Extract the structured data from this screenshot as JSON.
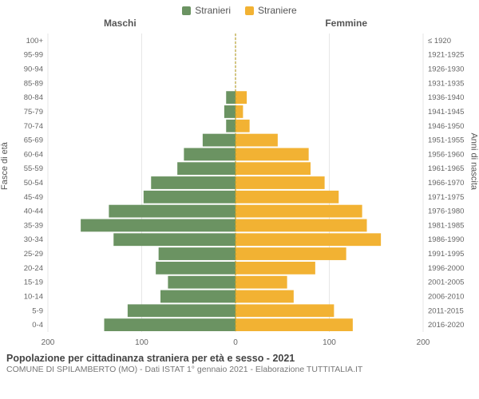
{
  "legend": {
    "male": "Stranieri",
    "female": "Straniere"
  },
  "columns": {
    "male": "Maschi",
    "female": "Femmine"
  },
  "axis_labels": {
    "left": "Fasce di età",
    "right": "Anni di nascita"
  },
  "title": "Popolazione per cittadinanza straniera per età e sesso - 2021",
  "subtitle": "COMUNE DI SPILAMBERTO (MO) - Dati ISTAT 1° gennaio 2021 - Elaborazione TUTTITALIA.IT",
  "colors": {
    "male": "#6b9362",
    "female": "#f2b233",
    "grid": "#e6e6e6",
    "center": "#b8a030",
    "bg": "#ffffff",
    "text": "#666666"
  },
  "chart": {
    "type": "population-pyramid",
    "xlim": 200,
    "xticks": [
      200,
      100,
      0,
      100,
      200
    ],
    "xtick_labels": [
      "200",
      "100",
      "0",
      "100",
      "200"
    ],
    "bar_gap": 2,
    "rows": [
      {
        "age": "100+",
        "birth": "≤ 1920",
        "m": 0,
        "f": 0
      },
      {
        "age": "95-99",
        "birth": "1921-1925",
        "m": 0,
        "f": 0
      },
      {
        "age": "90-94",
        "birth": "1926-1930",
        "m": 0,
        "f": 0
      },
      {
        "age": "85-89",
        "birth": "1931-1935",
        "m": 0,
        "f": 0
      },
      {
        "age": "80-84",
        "birth": "1936-1940",
        "m": 10,
        "f": 12
      },
      {
        "age": "75-79",
        "birth": "1941-1945",
        "m": 12,
        "f": 8
      },
      {
        "age": "70-74",
        "birth": "1946-1950",
        "m": 10,
        "f": 15
      },
      {
        "age": "65-69",
        "birth": "1951-1955",
        "m": 35,
        "f": 45
      },
      {
        "age": "60-64",
        "birth": "1956-1960",
        "m": 55,
        "f": 78
      },
      {
        "age": "55-59",
        "birth": "1961-1965",
        "m": 62,
        "f": 80
      },
      {
        "age": "50-54",
        "birth": "1966-1970",
        "m": 90,
        "f": 95
      },
      {
        "age": "45-49",
        "birth": "1971-1975",
        "m": 98,
        "f": 110
      },
      {
        "age": "40-44",
        "birth": "1976-1980",
        "m": 135,
        "f": 135
      },
      {
        "age": "35-39",
        "birth": "1981-1985",
        "m": 165,
        "f": 140
      },
      {
        "age": "30-34",
        "birth": "1986-1990",
        "m": 130,
        "f": 155
      },
      {
        "age": "25-29",
        "birth": "1991-1995",
        "m": 82,
        "f": 118
      },
      {
        "age": "20-24",
        "birth": "1996-2000",
        "m": 85,
        "f": 85
      },
      {
        "age": "15-19",
        "birth": "2001-2005",
        "m": 72,
        "f": 55
      },
      {
        "age": "10-14",
        "birth": "2006-2010",
        "m": 80,
        "f": 62
      },
      {
        "age": "5-9",
        "birth": "2011-2015",
        "m": 115,
        "f": 105
      },
      {
        "age": "0-4",
        "birth": "2016-2020",
        "m": 140,
        "f": 125
      }
    ]
  }
}
